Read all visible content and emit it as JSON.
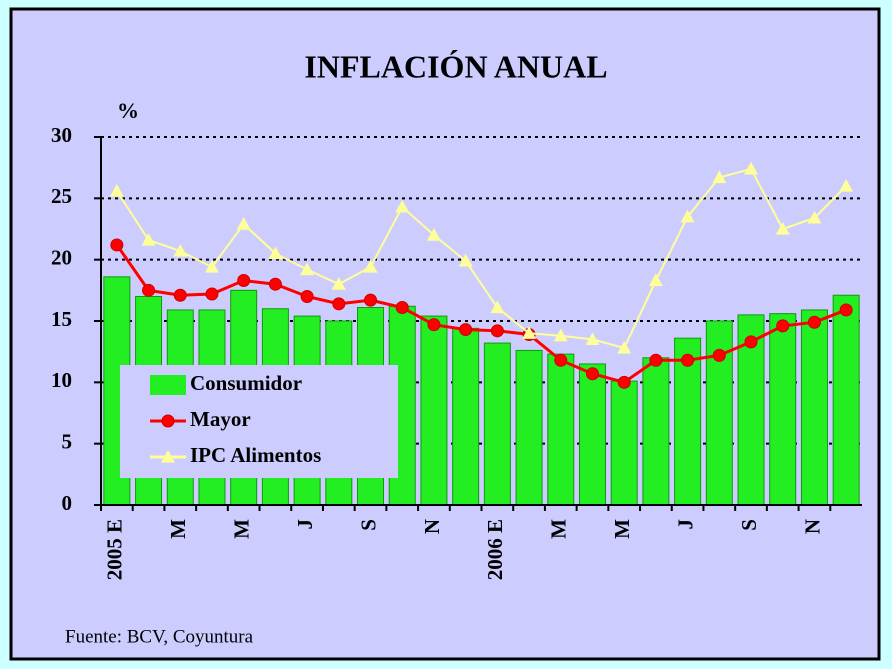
{
  "chart_data": {
    "type": "bar",
    "title": "INFLACIÓN ANUAL",
    "y_label": "%",
    "source": "Fuente: BCV, Coyuntura",
    "categories": [
      "2005 E",
      null,
      "M",
      null,
      "M",
      null,
      "J",
      null,
      "S",
      null,
      "N",
      null,
      "2006 E",
      null,
      "M",
      null,
      "M",
      null,
      "J",
      null,
      "S",
      null,
      "N",
      null
    ],
    "series": [
      {
        "name": "Consumidor",
        "type": "bar",
        "color": "#22ee22",
        "values": [
          18.6,
          17.0,
          15.9,
          15.9,
          17.5,
          16.0,
          15.4,
          15.0,
          16.1,
          16.2,
          15.4,
          14.4,
          13.2,
          12.6,
          12.3,
          11.5,
          10.1,
          12.0,
          13.6,
          15.0,
          15.5,
          15.6,
          15.9,
          17.1
        ]
      },
      {
        "name": "Mayor",
        "type": "line",
        "marker": "circle",
        "color": "#ff0000",
        "values": [
          21.2,
          17.5,
          17.1,
          17.2,
          18.3,
          18.0,
          17.0,
          16.4,
          16.7,
          16.1,
          14.7,
          14.3,
          14.2,
          13.9,
          11.8,
          10.7,
          10.0,
          11.8,
          11.8,
          12.2,
          13.3,
          14.6,
          14.9,
          15.9
        ]
      },
      {
        "name": "IPC Alimentos",
        "type": "line",
        "marker": "triangle",
        "color": "#ffff99",
        "values": [
          25.6,
          21.6,
          20.7,
          19.4,
          22.9,
          20.5,
          19.2,
          18.0,
          19.4,
          24.3,
          22.0,
          19.9,
          16.1,
          14.0,
          13.8,
          13.5,
          12.8,
          18.3,
          23.5,
          26.7,
          27.4,
          22.5,
          23.4,
          26.0
        ]
      }
    ],
    "ylim": [
      0,
      30
    ],
    "yticks": [
      0,
      5,
      10,
      15,
      20,
      25,
      30
    ],
    "grid": true,
    "legend": "lower-left"
  }
}
